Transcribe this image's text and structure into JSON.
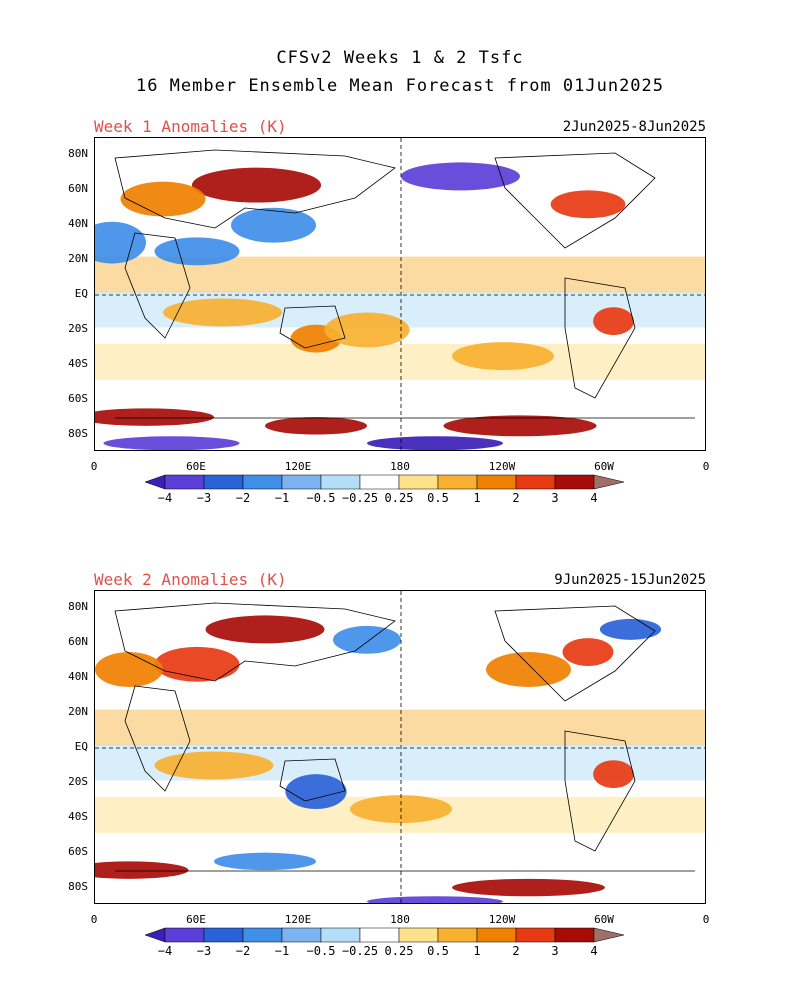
{
  "title": {
    "line1": "CFSv2 Weeks 1 & 2 Tsfc",
    "line2": "16 Member Ensemble Mean Forecast from 01Jun2025"
  },
  "panels": [
    {
      "label": "Week 1 Anomalies (K)",
      "date_range": "2Jun2025-8Jun2025",
      "features": [
        {
          "lon": 95,
          "lat": 63,
          "rx": 38,
          "ry": 10,
          "v": 4
        },
        {
          "lon": 40,
          "lat": 55,
          "rx": 25,
          "ry": 10,
          "v": 2
        },
        {
          "lon": 290,
          "lat": 52,
          "rx": 22,
          "ry": 8,
          "v": 3
        },
        {
          "lon": 215,
          "lat": 68,
          "rx": 35,
          "ry": 8,
          "v": -3
        },
        {
          "lon": 105,
          "lat": 40,
          "rx": 25,
          "ry": 10,
          "v": -1
        },
        {
          "lon": 10,
          "lat": 30,
          "rx": 20,
          "ry": 12,
          "v": -1
        },
        {
          "lon": 60,
          "lat": 25,
          "rx": 25,
          "ry": 8,
          "v": -1
        },
        {
          "lon": 130,
          "lat": -25,
          "rx": 15,
          "ry": 8,
          "v": 2
        },
        {
          "lon": 305,
          "lat": -15,
          "rx": 12,
          "ry": 8,
          "v": 3
        },
        {
          "lon": 75,
          "lat": -10,
          "rx": 35,
          "ry": 8,
          "v": 1
        },
        {
          "lon": 160,
          "lat": -20,
          "rx": 25,
          "ry": 10,
          "v": 1
        },
        {
          "lon": 240,
          "lat": -35,
          "rx": 30,
          "ry": 8,
          "v": 1
        },
        {
          "lon": 30,
          "lat": -70,
          "rx": 40,
          "ry": 5,
          "v": 4
        },
        {
          "lon": 130,
          "lat": -75,
          "rx": 30,
          "ry": 5,
          "v": 4
        },
        {
          "lon": 250,
          "lat": -75,
          "rx": 45,
          "ry": 6,
          "v": 4
        },
        {
          "lon": 200,
          "lat": -85,
          "rx": 40,
          "ry": 4,
          "v": -4
        },
        {
          "lon": 45,
          "lat": -85,
          "rx": 40,
          "ry": 4,
          "v": -3
        }
      ]
    },
    {
      "label": "Week 2 Anomalies (K)",
      "date_range": "9Jun2025-15Jun2025",
      "features": [
        {
          "lon": 100,
          "lat": 68,
          "rx": 35,
          "ry": 8,
          "v": 4
        },
        {
          "lon": 60,
          "lat": 48,
          "rx": 25,
          "ry": 10,
          "v": 3
        },
        {
          "lon": 20,
          "lat": 45,
          "rx": 20,
          "ry": 10,
          "v": 2
        },
        {
          "lon": 255,
          "lat": 45,
          "rx": 25,
          "ry": 10,
          "v": 2
        },
        {
          "lon": 290,
          "lat": 55,
          "rx": 15,
          "ry": 8,
          "v": 3
        },
        {
          "lon": 315,
          "lat": 68,
          "rx": 18,
          "ry": 6,
          "v": -2
        },
        {
          "lon": 160,
          "lat": 62,
          "rx": 20,
          "ry": 8,
          "v": -1
        },
        {
          "lon": 130,
          "lat": -25,
          "rx": 18,
          "ry": 10,
          "v": -2
        },
        {
          "lon": 305,
          "lat": -15,
          "rx": 12,
          "ry": 8,
          "v": 3
        },
        {
          "lon": 70,
          "lat": -10,
          "rx": 35,
          "ry": 8,
          "v": 1
        },
        {
          "lon": 180,
          "lat": -35,
          "rx": 30,
          "ry": 8,
          "v": 1
        },
        {
          "lon": 20,
          "lat": -70,
          "rx": 35,
          "ry": 5,
          "v": 4
        },
        {
          "lon": 255,
          "lat": -80,
          "rx": 45,
          "ry": 5,
          "v": 4
        },
        {
          "lon": 200,
          "lat": -88,
          "rx": 40,
          "ry": 3,
          "v": -3
        },
        {
          "lon": 100,
          "lat": -65,
          "rx": 30,
          "ry": 5,
          "v": -1
        }
      ]
    }
  ],
  "axes": {
    "y_labels": [
      {
        "lat": 80,
        "text": "80N"
      },
      {
        "lat": 60,
        "text": "60N"
      },
      {
        "lat": 40,
        "text": "40N"
      },
      {
        "lat": 20,
        "text": "20N"
      },
      {
        "lat": 0,
        "text": "EQ"
      },
      {
        "lat": -20,
        "text": "20S"
      },
      {
        "lat": -40,
        "text": "40S"
      },
      {
        "lat": -60,
        "text": "60S"
      },
      {
        "lat": -80,
        "text": "80S"
      }
    ],
    "x_labels": [
      {
        "lon": 0,
        "text": "0"
      },
      {
        "lon": 60,
        "text": "60E"
      },
      {
        "lon": 120,
        "text": "120E"
      },
      {
        "lon": 180,
        "text": "180"
      },
      {
        "lon": 240,
        "text": "120W"
      },
      {
        "lon": 300,
        "text": "60W"
      },
      {
        "lon": 360,
        "text": "0"
      }
    ]
  },
  "colorbar": {
    "labels": [
      "−4",
      "−3",
      "−2",
      "−1",
      "−0.5",
      "−0.25",
      "0.25",
      "0.5",
      "1",
      "2",
      "3",
      "4"
    ],
    "colors": [
      "#3a1fb8",
      "#5a3fd8",
      "#2a62d8",
      "#3f8ee8",
      "#7cb3f0",
      "#b4def8",
      "#ffffff",
      "#fde28a",
      "#f8b030",
      "#f08000",
      "#e83a12",
      "#a80c08",
      "#a07068"
    ],
    "levels": [
      -4,
      -3,
      -2,
      -1,
      -0.5,
      -0.25,
      0.25,
      0.5,
      1,
      2,
      3,
      4
    ]
  }
}
